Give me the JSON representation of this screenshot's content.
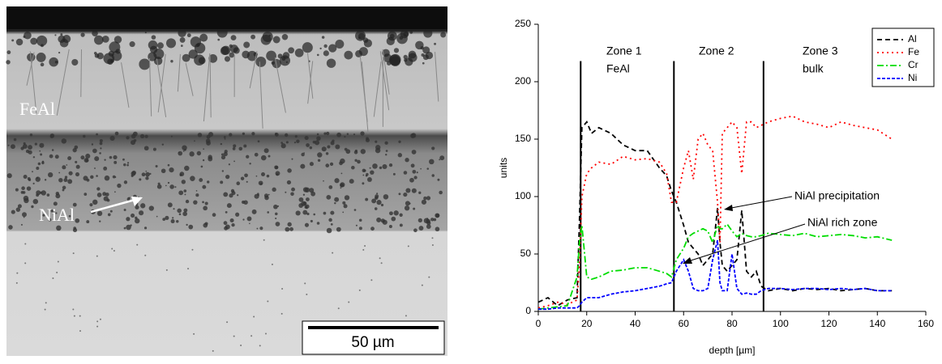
{
  "chart_data": {
    "type": "line",
    "image_labels": [
      "FeAl",
      "NiAl"
    ],
    "scale_bar": "50 µm",
    "xlabel": "depth [µm]",
    "ylabel": "units",
    "xlim": [
      0,
      160
    ],
    "xticks": [
      0,
      20,
      40,
      60,
      80,
      100,
      120,
      140,
      160
    ],
    "ylim": [
      0,
      250
    ],
    "yticks": [
      0,
      50,
      100,
      150,
      200,
      250
    ],
    "legend": "upper right",
    "x": [
      0,
      4,
      8,
      12,
      16,
      17,
      18,
      20,
      22,
      25,
      30,
      35,
      40,
      45,
      50,
      53,
      55,
      57,
      60,
      62,
      64,
      66,
      68,
      70,
      72,
      74,
      75,
      76,
      78,
      80,
      82,
      84,
      86,
      88,
      90,
      92,
      95,
      100,
      105,
      110,
      115,
      120,
      125,
      130,
      135,
      140,
      146
    ],
    "series": [
      {
        "name": "Al",
        "color": "#000000",
        "dash": "6,4",
        "values": [
          8,
          12,
          5,
          10,
          12,
          80,
          160,
          165,
          155,
          160,
          155,
          145,
          140,
          140,
          125,
          118,
          105,
          95,
          75,
          60,
          55,
          50,
          40,
          45,
          50,
          90,
          60,
          40,
          35,
          40,
          45,
          88,
          35,
          30,
          35,
          22,
          18,
          20,
          18,
          20,
          19,
          20,
          18,
          19,
          20,
          18,
          18
        ]
      },
      {
        "name": "Fe",
        "color": "#ff0000",
        "dash": "2,4",
        "values": [
          3,
          5,
          8,
          6,
          10,
          40,
          100,
          120,
          125,
          130,
          128,
          135,
          132,
          133,
          130,
          120,
          95,
          95,
          125,
          140,
          115,
          150,
          155,
          145,
          140,
          95,
          60,
          155,
          160,
          165,
          160,
          120,
          165,
          165,
          160,
          162,
          165,
          168,
          170,
          165,
          163,
          160,
          165,
          162,
          160,
          158,
          150
        ]
      },
      {
        "name": "Cr",
        "color": "#00dd00",
        "dash": "8,3,2,3",
        "values": [
          2,
          3,
          4,
          5,
          30,
          60,
          75,
          30,
          28,
          30,
          35,
          36,
          38,
          38,
          35,
          33,
          30,
          45,
          55,
          65,
          68,
          70,
          72,
          70,
          60,
          75,
          72,
          72,
          76,
          70,
          65,
          68,
          66,
          65,
          65,
          66,
          68,
          67,
          66,
          68,
          65,
          66,
          67,
          66,
          64,
          65,
          62
        ]
      },
      {
        "name": "Ni",
        "color": "#0000ff",
        "dash": "4,2",
        "values": [
          2,
          2,
          3,
          3,
          3,
          5,
          8,
          12,
          12,
          12,
          15,
          17,
          18,
          20,
          22,
          24,
          25,
          35,
          45,
          35,
          20,
          18,
          18,
          20,
          45,
          62,
          25,
          18,
          18,
          50,
          20,
          15,
          16,
          15,
          15,
          18,
          20,
          20,
          19,
          20,
          20,
          19,
          20,
          19,
          20,
          18,
          18
        ]
      }
    ],
    "vlines": [
      {
        "x": 17.5,
        "y": [
          0,
          218
        ]
      },
      {
        "x": 56,
        "y": [
          0,
          218
        ]
      },
      {
        "x": 93,
        "y": [
          0,
          218
        ]
      }
    ],
    "annotations": [
      "Zone 1",
      "FeAl",
      "Zone 2",
      "Zone 3",
      "bulk",
      "NiAl precipitation",
      "NiAl rich zone"
    ]
  }
}
